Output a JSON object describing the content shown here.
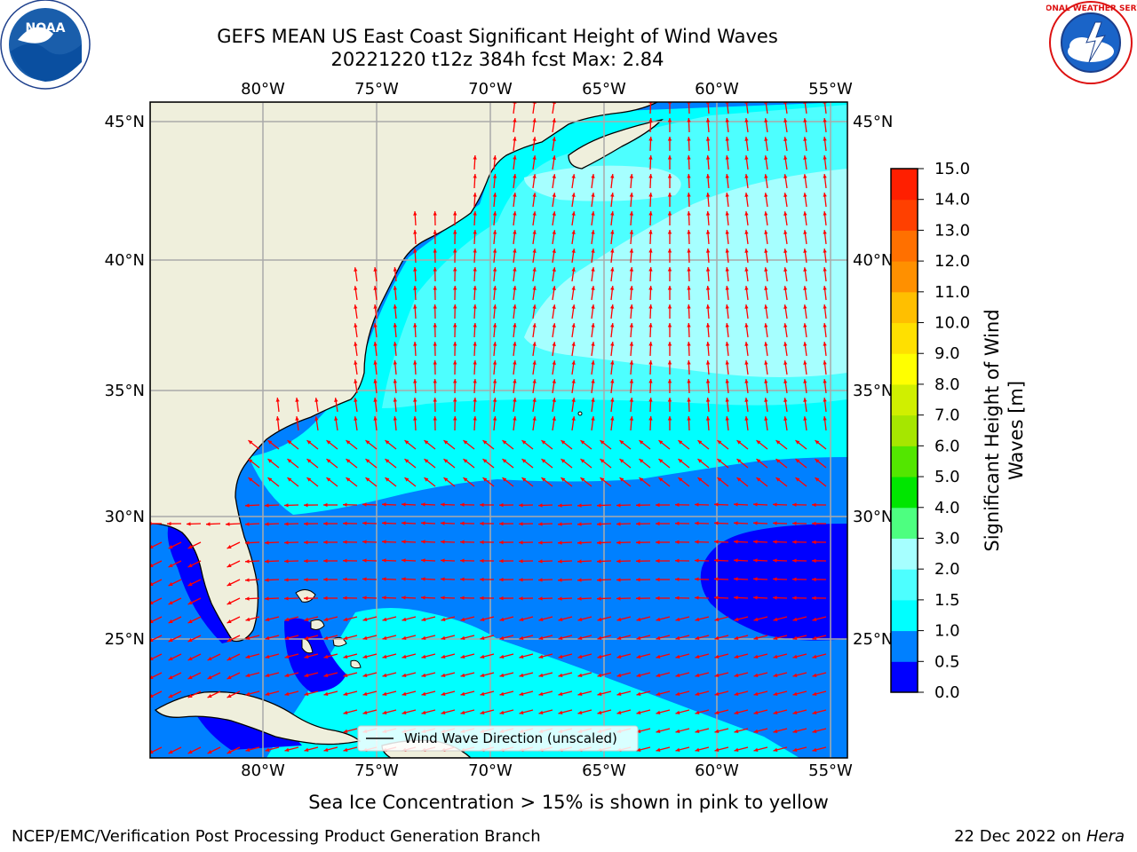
{
  "header": {
    "title_line1": "GEFS MEAN US East Coast Significant Height of Wind Waves",
    "title_line2": "20221220 t12z 384h fcst   Max: 2.84"
  },
  "logos": {
    "left": {
      "text": "NOAA",
      "icon": "noaa-logo-icon"
    },
    "right": {
      "text": "NATIONAL WEATHER SERVICE",
      "icon": "nws-logo-icon"
    }
  },
  "map": {
    "lon_labels": [
      "80°W",
      "75°W",
      "70°W",
      "65°W",
      "60°W",
      "55°W"
    ],
    "lat_labels": [
      "45°N",
      "40°N",
      "35°N",
      "30°N",
      "25°N"
    ],
    "legend": "Wind Wave Direction (unscaled)",
    "land_color": "#efefdc",
    "arrow_color": "#ff0000"
  },
  "colorbar": {
    "label": "Significant Height of Wind Waves [m]",
    "label_line1": "Significant Height of Wind",
    "label_line2": "Waves [m]",
    "ticks": [
      "0.0",
      "0.5",
      "1.0",
      "1.5",
      "2.0",
      "3.0",
      "4.0",
      "5.0",
      "6.0",
      "7.0",
      "8.0",
      "9.0",
      "10.0",
      "11.0",
      "12.0",
      "13.0",
      "14.0",
      "15.0"
    ],
    "colors": [
      "#0000ff",
      "#0080ff",
      "#00ffff",
      "#4dffff",
      "#a6ffff",
      "#4dff80",
      "#00e600",
      "#53e600",
      "#a6e600",
      "#d0ef00",
      "#ffff00",
      "#ffe000",
      "#ffbf00",
      "#ff9000",
      "#ff7000",
      "#ff4000",
      "#ff1f00"
    ]
  },
  "footer": {
    "sea_ice_note": "Sea Ice Concentration > 15% is shown in pink to yellow",
    "credit": "NCEP/EMC/Verification Post Processing Product Generation Branch",
    "date_prefix": "22 Dec 2022 on ",
    "date_machine": "Hera"
  }
}
